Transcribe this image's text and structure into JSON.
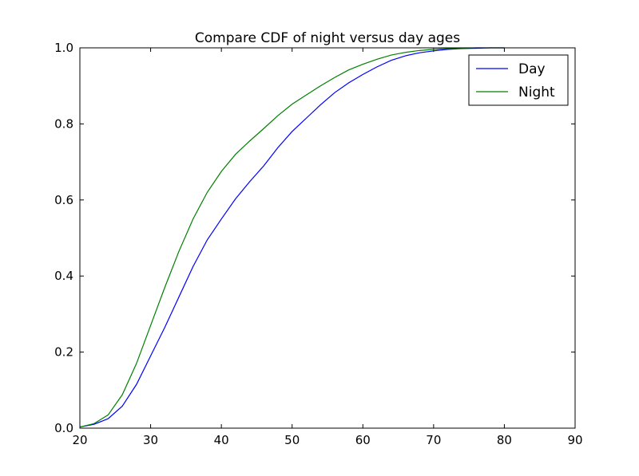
{
  "chart_data": {
    "type": "line",
    "title": "Compare CDF of night versus day ages",
    "xlabel": "",
    "ylabel": "",
    "xlim": [
      20,
      90
    ],
    "ylim": [
      0.0,
      1.0
    ],
    "xticks": [
      20,
      30,
      40,
      50,
      60,
      70,
      80,
      90
    ],
    "xtick_labels": [
      "20",
      "30",
      "40",
      "50",
      "60",
      "70",
      "80",
      "90"
    ],
    "yticks": [
      0.0,
      0.2,
      0.4,
      0.6,
      0.8,
      1.0
    ],
    "ytick_labels": [
      "0.0",
      "0.2",
      "0.4",
      "0.6",
      "0.8",
      "1.0"
    ],
    "grid": false,
    "legend_position": "top-right",
    "series": [
      {
        "name": "Day",
        "color": "#0000ff",
        "x": [
          20,
          22,
          24,
          26,
          28,
          30,
          32,
          34,
          36,
          38,
          40,
          42,
          44,
          46,
          48,
          50,
          52,
          54,
          56,
          58,
          60,
          62,
          64,
          66,
          68,
          70,
          72,
          74,
          76,
          78,
          80
        ],
        "y": [
          0.003,
          0.01,
          0.025,
          0.058,
          0.115,
          0.19,
          0.265,
          0.345,
          0.425,
          0.495,
          0.55,
          0.603,
          0.648,
          0.69,
          0.738,
          0.78,
          0.815,
          0.85,
          0.882,
          0.908,
          0.93,
          0.95,
          0.967,
          0.979,
          0.987,
          0.992,
          0.996,
          0.998,
          0.999,
          1.0,
          1.0
        ]
      },
      {
        "name": "Night",
        "color": "#008000",
        "x": [
          20,
          22,
          24,
          26,
          28,
          30,
          32,
          34,
          36,
          38,
          40,
          42,
          44,
          46,
          48,
          50,
          52,
          54,
          56,
          58,
          60,
          62,
          64,
          66,
          68,
          70,
          72,
          74,
          76,
          78,
          80
        ],
        "y": [
          0.003,
          0.012,
          0.035,
          0.088,
          0.17,
          0.27,
          0.37,
          0.465,
          0.55,
          0.62,
          0.675,
          0.72,
          0.755,
          0.788,
          0.822,
          0.852,
          0.876,
          0.9,
          0.922,
          0.942,
          0.957,
          0.97,
          0.981,
          0.988,
          0.993,
          0.996,
          0.998,
          0.999,
          1.0,
          1.0,
          1.0
        ]
      }
    ]
  }
}
